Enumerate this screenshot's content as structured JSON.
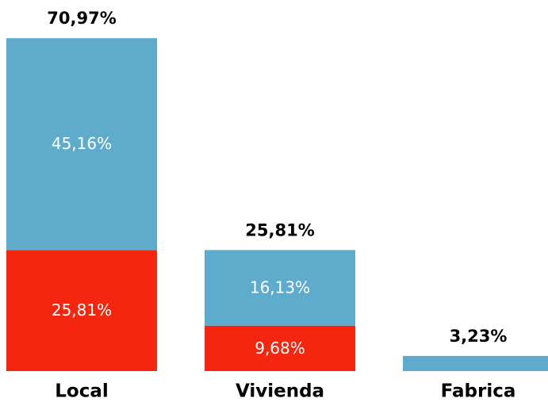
{
  "chart_data": {
    "type": "stacked_bar",
    "categories": [
      "Local",
      "Vivienda",
      "Fabrica"
    ],
    "series": [
      {
        "color": "#f5260f",
        "values": [
          25.81,
          9.68,
          null
        ],
        "value_labels": [
          "25,81%",
          "9,68%",
          null
        ]
      },
      {
        "color": "#5eabcc",
        "values": [
          45.16,
          16.13,
          3.23
        ],
        "value_labels": [
          "45,16%",
          "16,13%",
          null
        ]
      }
    ],
    "totals": [
      70.97,
      25.81,
      3.23
    ],
    "total_labels": [
      "70,97%",
      "25,81%",
      "3,23%"
    ],
    "ylim": [
      0,
      71
    ]
  }
}
